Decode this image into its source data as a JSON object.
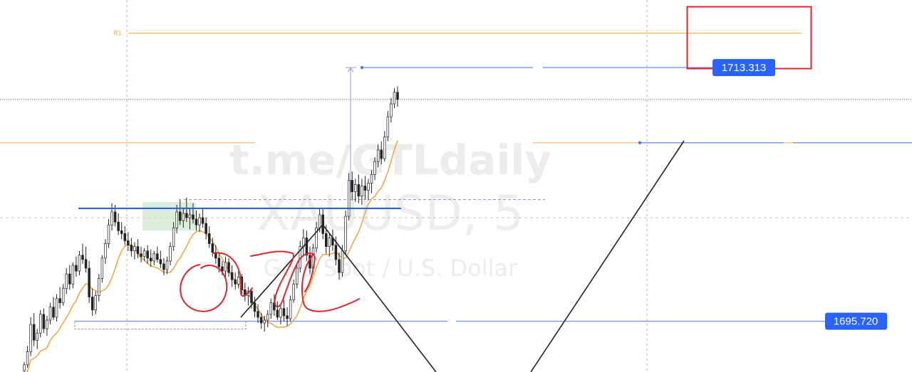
{
  "chart_data": {
    "type": "candlestick",
    "watermark": {
      "channel": "t.me/GTLdaily",
      "symbol": "XAUUSD, 5",
      "description": "Gold Spot / U.S. Dollar"
    },
    "pivot_label": "R1",
    "price_labels": [
      {
        "value": "1713.313"
      },
      {
        "value": "1695.720"
      }
    ],
    "ylim": [
      1692.2,
      1718.0
    ],
    "levels": {
      "r1": 1715.7,
      "target": 1713.313,
      "orange_level": 1708.1,
      "resistance": 1703.55,
      "support": 1695.72,
      "last_price": 1711.12,
      "dashed_upper": 1704.16,
      "dashed_mid": 1702.9
    },
    "candles": [
      [
        1692.3,
        1692.9,
        1692.0,
        1692.7
      ],
      [
        1692.7,
        1694.0,
        1692.5,
        1693.6
      ],
      [
        1693.6,
        1696.0,
        1693.3,
        1695.5
      ],
      [
        1695.5,
        1696.3,
        1694.0,
        1694.4
      ],
      [
        1694.4,
        1695.2,
        1693.8,
        1694.9
      ],
      [
        1694.9,
        1696.5,
        1694.6,
        1696.2
      ],
      [
        1696.2,
        1696.6,
        1694.9,
        1695.2
      ],
      [
        1695.2,
        1696.1,
        1694.7,
        1695.8
      ],
      [
        1695.8,
        1697.0,
        1695.5,
        1696.7
      ],
      [
        1696.7,
        1697.4,
        1695.8,
        1696.0
      ],
      [
        1696.0,
        1697.6,
        1695.7,
        1697.3
      ],
      [
        1697.3,
        1698.1,
        1696.6,
        1697.0
      ],
      [
        1697.0,
        1698.3,
        1696.8,
        1698.0
      ],
      [
        1698.0,
        1699.4,
        1697.6,
        1699.0
      ],
      [
        1699.0,
        1699.6,
        1697.9,
        1698.3
      ],
      [
        1698.3,
        1699.8,
        1698.0,
        1699.6
      ],
      [
        1699.6,
        1700.2,
        1698.8,
        1699.2
      ],
      [
        1699.2,
        1700.6,
        1698.9,
        1700.3
      ],
      [
        1700.3,
        1701.1,
        1699.7,
        1700.0
      ],
      [
        1700.0,
        1700.9,
        1699.1,
        1699.4
      ],
      [
        1699.4,
        1699.9,
        1697.0,
        1697.4
      ],
      [
        1697.4,
        1698.0,
        1696.1,
        1696.5
      ],
      [
        1696.5,
        1697.8,
        1696.2,
        1697.5
      ],
      [
        1697.5,
        1699.0,
        1697.1,
        1698.7
      ],
      [
        1698.7,
        1700.3,
        1698.4,
        1700.1
      ],
      [
        1700.1,
        1701.4,
        1699.7,
        1701.1
      ],
      [
        1701.1,
        1702.8,
        1700.8,
        1702.4
      ],
      [
        1702.4,
        1703.9,
        1702.0,
        1703.3
      ],
      [
        1703.3,
        1703.8,
        1702.3,
        1702.6
      ],
      [
        1702.6,
        1703.2,
        1701.7,
        1702.0
      ],
      [
        1702.0,
        1702.6,
        1701.4,
        1701.8
      ],
      [
        1701.8,
        1702.3,
        1701.0,
        1701.3
      ],
      [
        1701.3,
        1701.9,
        1700.6,
        1701.0
      ],
      [
        1701.0,
        1701.5,
        1700.2,
        1700.6
      ],
      [
        1700.6,
        1701.2,
        1700.0,
        1700.9
      ],
      [
        1700.9,
        1701.4,
        1700.1,
        1700.4
      ],
      [
        1700.4,
        1700.9,
        1699.8,
        1700.2
      ],
      [
        1700.2,
        1700.8,
        1699.9,
        1700.6
      ],
      [
        1700.6,
        1701.0,
        1699.7,
        1700.1
      ],
      [
        1700.1,
        1700.7,
        1699.5,
        1699.9
      ],
      [
        1699.9,
        1700.6,
        1699.6,
        1700.4
      ],
      [
        1700.4,
        1700.9,
        1699.8,
        1700.0
      ],
      [
        1700.0,
        1700.6,
        1699.4,
        1699.7
      ],
      [
        1699.7,
        1700.1,
        1698.9,
        1699.3
      ],
      [
        1699.3,
        1700.2,
        1699.0,
        1699.9
      ],
      [
        1699.9,
        1701.2,
        1699.6,
        1700.9
      ],
      [
        1700.9,
        1702.6,
        1700.6,
        1702.2
      ],
      [
        1702.2,
        1703.8,
        1701.8,
        1703.3
      ],
      [
        1703.3,
        1704.2,
        1702.4,
        1702.7
      ],
      [
        1702.7,
        1703.6,
        1702.2,
        1703.2
      ],
      [
        1703.2,
        1704.3,
        1702.6,
        1702.9
      ],
      [
        1702.9,
        1703.5,
        1702.1,
        1703.1
      ],
      [
        1703.1,
        1703.9,
        1702.5,
        1702.8
      ],
      [
        1702.8,
        1703.4,
        1702.0,
        1702.4
      ],
      [
        1702.4,
        1703.2,
        1701.9,
        1702.9
      ],
      [
        1702.9,
        1703.6,
        1702.2,
        1702.5
      ],
      [
        1702.5,
        1702.9,
        1701.4,
        1701.8
      ],
      [
        1701.8,
        1702.3,
        1700.8,
        1701.1
      ],
      [
        1701.1,
        1701.5,
        1700.2,
        1700.5
      ],
      [
        1700.5,
        1701.0,
        1699.7,
        1700.1
      ],
      [
        1700.1,
        1700.5,
        1699.1,
        1699.5
      ],
      [
        1699.5,
        1699.9,
        1698.9,
        1699.2
      ],
      [
        1699.2,
        1700.2,
        1698.7,
        1699.8
      ],
      [
        1699.8,
        1700.1,
        1698.8,
        1699.1
      ],
      [
        1699.1,
        1699.6,
        1698.1,
        1698.6
      ],
      [
        1698.6,
        1699.1,
        1697.9,
        1698.3
      ],
      [
        1698.3,
        1699.2,
        1698.0,
        1698.8
      ],
      [
        1698.8,
        1699.0,
        1697.6,
        1697.9
      ],
      [
        1697.9,
        1698.4,
        1697.1,
        1697.5
      ],
      [
        1697.5,
        1698.1,
        1696.8,
        1697.8
      ],
      [
        1697.8,
        1698.0,
        1696.6,
        1697.0
      ],
      [
        1697.0,
        1697.4,
        1696.0,
        1696.4
      ],
      [
        1696.4,
        1696.9,
        1695.6,
        1696.0
      ],
      [
        1696.0,
        1696.3,
        1695.2,
        1695.6
      ],
      [
        1695.6,
        1696.1,
        1695.0,
        1695.8
      ],
      [
        1695.8,
        1696.5,
        1695.3,
        1696.2
      ],
      [
        1696.2,
        1697.3,
        1695.9,
        1697.0
      ],
      [
        1697.0,
        1697.6,
        1696.1,
        1696.5
      ],
      [
        1696.5,
        1697.1,
        1695.8,
        1696.0
      ],
      [
        1696.0,
        1696.9,
        1695.5,
        1696.6
      ],
      [
        1696.6,
        1697.2,
        1695.7,
        1696.1
      ],
      [
        1696.1,
        1696.7,
        1695.4,
        1695.9
      ],
      [
        1695.9,
        1697.5,
        1695.7,
        1697.2
      ],
      [
        1697.2,
        1698.6,
        1697.0,
        1698.3
      ],
      [
        1698.3,
        1699.7,
        1698.0,
        1699.4
      ],
      [
        1699.4,
        1701.3,
        1699.1,
        1700.9
      ],
      [
        1700.9,
        1702.1,
        1700.2,
        1701.5
      ],
      [
        1701.5,
        1702.0,
        1699.9,
        1700.3
      ],
      [
        1700.3,
        1700.9,
        1699.0,
        1699.4
      ],
      [
        1699.4,
        1701.1,
        1699.1,
        1700.8
      ],
      [
        1700.8,
        1702.6,
        1700.5,
        1702.2
      ],
      [
        1702.2,
        1703.6,
        1701.9,
        1703.1
      ],
      [
        1703.1,
        1703.5,
        1701.4,
        1701.8
      ],
      [
        1701.8,
        1702.4,
        1700.4,
        1700.9
      ],
      [
        1700.9,
        1701.8,
        1700.2,
        1701.5
      ],
      [
        1701.5,
        1702.1,
        1700.6,
        1701.0
      ],
      [
        1701.0,
        1701.6,
        1699.6,
        1700.0
      ],
      [
        1700.0,
        1700.5,
        1698.6,
        1699.1
      ],
      [
        1699.1,
        1701.0,
        1698.8,
        1700.6
      ],
      [
        1700.6,
        1703.4,
        1700.3,
        1703.0
      ],
      [
        1703.0,
        1706.0,
        1702.7,
        1705.5
      ],
      [
        1705.5,
        1706.1,
        1704.1,
        1704.7
      ],
      [
        1704.7,
        1705.6,
        1704.0,
        1705.2
      ],
      [
        1705.2,
        1705.9,
        1703.9,
        1704.4
      ],
      [
        1704.4,
        1705.6,
        1703.8,
        1705.1
      ],
      [
        1705.1,
        1705.8,
        1704.2,
        1704.8
      ],
      [
        1704.8,
        1705.6,
        1704.1,
        1705.3
      ],
      [
        1705.3,
        1706.2,
        1704.6,
        1705.9
      ],
      [
        1705.9,
        1707.1,
        1705.5,
        1706.8
      ],
      [
        1706.8,
        1708.0,
        1706.4,
        1707.6
      ],
      [
        1707.6,
        1708.2,
        1706.6,
        1707.0
      ],
      [
        1707.0,
        1708.9,
        1706.8,
        1708.5
      ],
      [
        1708.5,
        1710.3,
        1708.2,
        1709.9
      ],
      [
        1709.9,
        1711.2,
        1709.5,
        1710.8
      ],
      [
        1710.8,
        1711.9,
        1710.5,
        1711.6
      ],
      [
        1711.6,
        1712.0,
        1710.6,
        1711.1
      ]
    ]
  }
}
